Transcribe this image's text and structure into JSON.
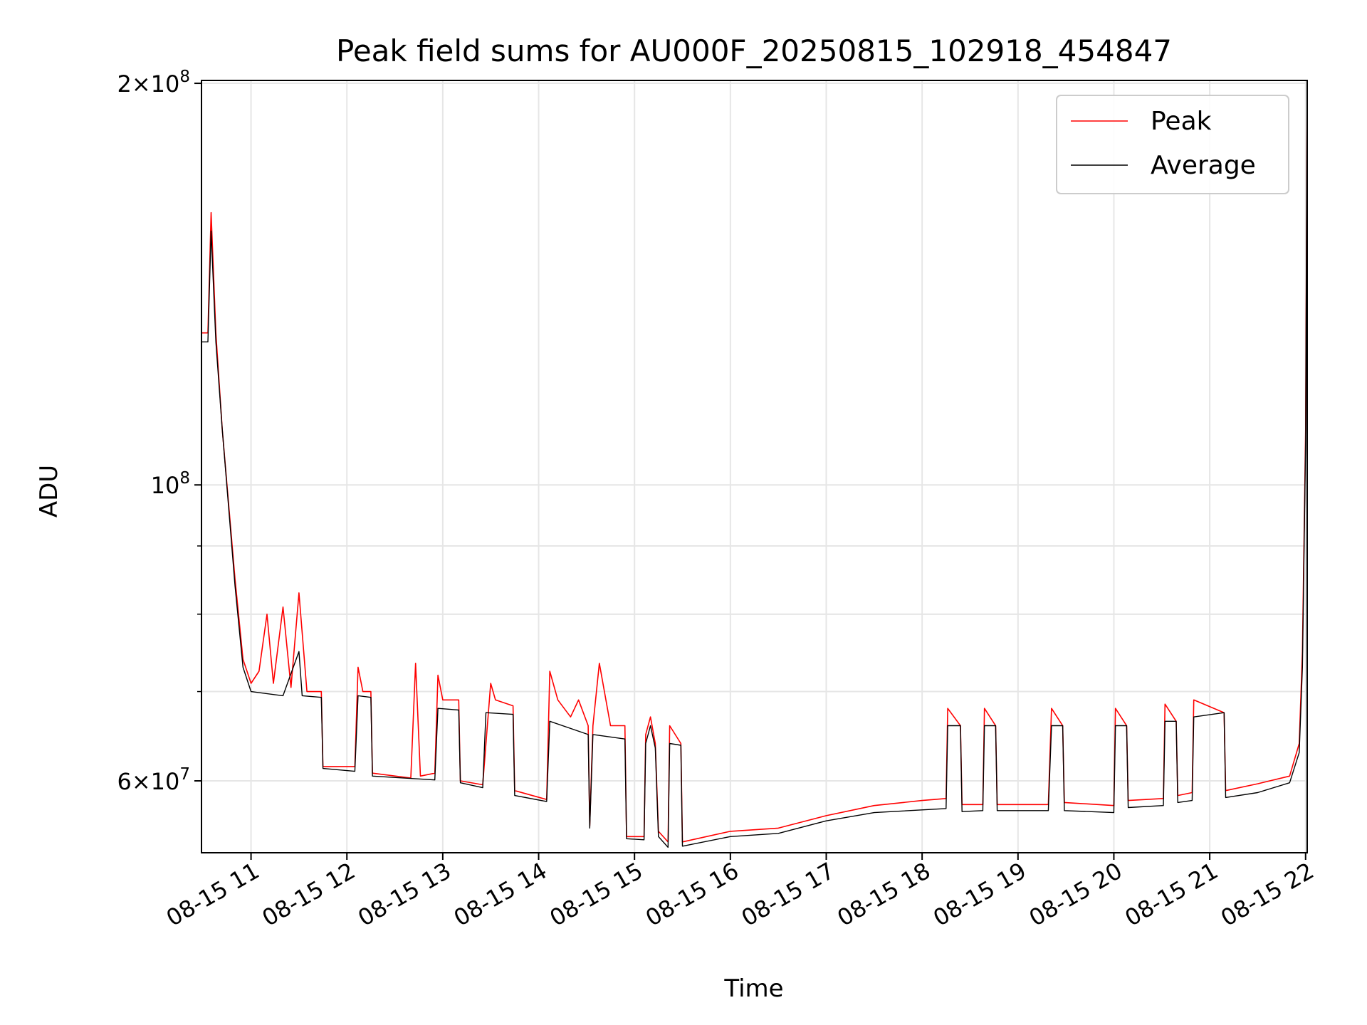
{
  "chart_data": {
    "type": "line",
    "title": "Peak field sums for AU000F_20250815_102918_454847",
    "xlabel": "Time",
    "ylabel": "ADU",
    "x_ticks": [
      "08-15 11",
      "08-15 12",
      "08-15 13",
      "08-15 14",
      "08-15 15",
      "08-15 16",
      "08-15 17",
      "08-15 18",
      "08-15 19",
      "08-15 20",
      "08-15 21",
      "08-15 22"
    ],
    "y_ticks": [
      {
        "value": 60000000,
        "mantissa": "6",
        "exponent": "7"
      },
      {
        "value": 100000000,
        "mantissa": "",
        "exponent": "8"
      },
      {
        "value": 200000000,
        "mantissa": "2",
        "exponent": "8"
      }
    ],
    "xlim": [
      "2025-08-15 10:29",
      "2025-08-15 22:01"
    ],
    "ylim": [
      53000000,
      201000000
    ],
    "y_scale": "log",
    "grid": true,
    "legend_position": "top-right",
    "series": [
      {
        "name": "Peak",
        "color": "#ff0000",
        "points": [
          [
            "2025-08-15 10:29",
            130000000
          ],
          [
            "2025-08-15 10:33",
            130000000
          ],
          [
            "2025-08-15 10:35",
            160000000
          ],
          [
            "2025-08-15 10:38",
            130000000
          ],
          [
            "2025-08-15 10:42",
            110000000
          ],
          [
            "2025-08-15 10:50",
            85000000
          ],
          [
            "2025-08-15 10:55",
            74000000
          ],
          [
            "2025-08-15 11:00",
            71000000
          ],
          [
            "2025-08-15 11:05",
            72500000
          ],
          [
            "2025-08-15 11:10",
            80000000
          ],
          [
            "2025-08-15 11:14",
            71000000
          ],
          [
            "2025-08-15 11:20",
            81000000
          ],
          [
            "2025-08-15 11:25",
            70500000
          ],
          [
            "2025-08-15 11:30",
            83000000
          ],
          [
            "2025-08-15 11:35",
            70000000
          ],
          [
            "2025-08-15 11:40",
            70000000
          ],
          [
            "2025-08-15 11:44",
            70000000
          ],
          [
            "2025-08-15 11:45",
            61500000
          ],
          [
            "2025-08-15 12:05",
            61500000
          ],
          [
            "2025-08-15 12:07",
            73000000
          ],
          [
            "2025-08-15 12:10",
            70000000
          ],
          [
            "2025-08-15 12:15",
            70000000
          ],
          [
            "2025-08-15 12:16",
            60800000
          ],
          [
            "2025-08-15 12:40",
            60300000
          ],
          [
            "2025-08-15 12:43",
            73500000
          ],
          [
            "2025-08-15 12:46",
            60500000
          ],
          [
            "2025-08-15 12:55",
            60800000
          ],
          [
            "2025-08-15 12:57",
            72000000
          ],
          [
            "2025-08-15 13:00",
            69000000
          ],
          [
            "2025-08-15 13:10",
            69000000
          ],
          [
            "2025-08-15 13:11",
            60000000
          ],
          [
            "2025-08-15 13:25",
            59600000
          ],
          [
            "2025-08-15 13:30",
            71000000
          ],
          [
            "2025-08-15 13:33",
            69000000
          ],
          [
            "2025-08-15 13:44",
            68300000
          ],
          [
            "2025-08-15 13:45",
            59000000
          ],
          [
            "2025-08-15 14:05",
            58100000
          ],
          [
            "2025-08-15 14:07",
            72500000
          ],
          [
            "2025-08-15 14:12",
            69000000
          ],
          [
            "2025-08-15 14:20",
            67000000
          ],
          [
            "2025-08-15 14:25",
            69000000
          ],
          [
            "2025-08-15 14:31",
            66000000
          ],
          [
            "2025-08-15 14:32",
            55500000
          ],
          [
            "2025-08-15 14:34",
            66000000
          ],
          [
            "2025-08-15 14:38",
            73500000
          ],
          [
            "2025-08-15 14:45",
            66000000
          ],
          [
            "2025-08-15 14:54",
            66000000
          ],
          [
            "2025-08-15 14:55",
            54500000
          ],
          [
            "2025-08-15 15:06",
            54500000
          ],
          [
            "2025-08-15 15:07",
            65000000
          ],
          [
            "2025-08-15 15:10",
            67000000
          ],
          [
            "2025-08-15 15:13",
            64000000
          ],
          [
            "2025-08-15 15:15",
            55000000
          ],
          [
            "2025-08-15 15:21",
            54000000
          ],
          [
            "2025-08-15 15:22",
            66000000
          ],
          [
            "2025-08-15 15:29",
            64000000
          ],
          [
            "2025-08-15 15:30",
            54000000
          ],
          [
            "2025-08-15 16:00",
            55000000
          ],
          [
            "2025-08-15 16:30",
            55300000
          ],
          [
            "2025-08-15 17:00",
            56500000
          ],
          [
            "2025-08-15 17:30",
            57500000
          ],
          [
            "2025-08-15 18:00",
            58000000
          ],
          [
            "2025-08-15 18:15",
            58200000
          ],
          [
            "2025-08-15 18:16",
            68000000
          ],
          [
            "2025-08-15 18:24",
            66000000
          ],
          [
            "2025-08-15 18:25",
            57600000
          ],
          [
            "2025-08-15 18:38",
            57600000
          ],
          [
            "2025-08-15 18:39",
            68000000
          ],
          [
            "2025-08-15 18:46",
            66000000
          ],
          [
            "2025-08-15 18:47",
            57600000
          ],
          [
            "2025-08-15 19:19",
            57600000
          ],
          [
            "2025-08-15 19:21",
            68000000
          ],
          [
            "2025-08-15 19:28",
            66000000
          ],
          [
            "2025-08-15 19:29",
            57800000
          ],
          [
            "2025-08-15 20:00",
            57500000
          ],
          [
            "2025-08-15 20:01",
            68000000
          ],
          [
            "2025-08-15 20:08",
            66000000
          ],
          [
            "2025-08-15 20:09",
            58000000
          ],
          [
            "2025-08-15 20:31",
            58200000
          ],
          [
            "2025-08-15 20:32",
            68500000
          ],
          [
            "2025-08-15 20:39",
            66500000
          ],
          [
            "2025-08-15 20:40",
            58500000
          ],
          [
            "2025-08-15 20:49",
            58800000
          ],
          [
            "2025-08-15 20:50",
            69000000
          ],
          [
            "2025-08-15 21:09",
            67500000
          ],
          [
            "2025-08-15 21:10",
            59000000
          ],
          [
            "2025-08-15 21:30",
            59700000
          ],
          [
            "2025-08-15 21:50",
            60500000
          ],
          [
            "2025-08-15 21:56",
            64000000
          ],
          [
            "2025-08-15 21:58",
            75000000
          ],
          [
            "2025-08-15 22:00",
            110000000
          ],
          [
            "2025-08-15 22:01",
            201000000
          ]
        ]
      },
      {
        "name": "Average",
        "color": "#000000",
        "points": [
          [
            "2025-08-15 10:29",
            128000000
          ],
          [
            "2025-08-15 10:33",
            128000000
          ],
          [
            "2025-08-15 10:35",
            155000000
          ],
          [
            "2025-08-15 10:38",
            128000000
          ],
          [
            "2025-08-15 10:42",
            110000000
          ],
          [
            "2025-08-15 10:50",
            84000000
          ],
          [
            "2025-08-15 10:55",
            73000000
          ],
          [
            "2025-08-15 11:00",
            70000000
          ],
          [
            "2025-08-15 11:20",
            69500000
          ],
          [
            "2025-08-15 11:30",
            75000000
          ],
          [
            "2025-08-15 11:32",
            69500000
          ],
          [
            "2025-08-15 11:44",
            69300000
          ],
          [
            "2025-08-15 11:45",
            61300000
          ],
          [
            "2025-08-15 12:05",
            61000000
          ],
          [
            "2025-08-15 12:07",
            69500000
          ],
          [
            "2025-08-15 12:15",
            69300000
          ],
          [
            "2025-08-15 12:16",
            60500000
          ],
          [
            "2025-08-15 12:55",
            60100000
          ],
          [
            "2025-08-15 12:57",
            68000000
          ],
          [
            "2025-08-15 13:10",
            67800000
          ],
          [
            "2025-08-15 13:11",
            59800000
          ],
          [
            "2025-08-15 13:25",
            59300000
          ],
          [
            "2025-08-15 13:27",
            67500000
          ],
          [
            "2025-08-15 13:44",
            67300000
          ],
          [
            "2025-08-15 13:45",
            58500000
          ],
          [
            "2025-08-15 14:05",
            57900000
          ],
          [
            "2025-08-15 14:07",
            66500000
          ],
          [
            "2025-08-15 14:31",
            65000000
          ],
          [
            "2025-08-15 14:32",
            55300000
          ],
          [
            "2025-08-15 14:34",
            65000000
          ],
          [
            "2025-08-15 14:54",
            64500000
          ],
          [
            "2025-08-15 14:55",
            54300000
          ],
          [
            "2025-08-15 15:06",
            54200000
          ],
          [
            "2025-08-15 15:07",
            64000000
          ],
          [
            "2025-08-15 15:10",
            66000000
          ],
          [
            "2025-08-15 15:13",
            63500000
          ],
          [
            "2025-08-15 15:15",
            54500000
          ],
          [
            "2025-08-15 15:21",
            53500000
          ],
          [
            "2025-08-15 15:22",
            64000000
          ],
          [
            "2025-08-15 15:29",
            63800000
          ],
          [
            "2025-08-15 15:30",
            53600000
          ],
          [
            "2025-08-15 16:00",
            54500000
          ],
          [
            "2025-08-15 16:30",
            54800000
          ],
          [
            "2025-08-15 17:00",
            56000000
          ],
          [
            "2025-08-15 17:30",
            56800000
          ],
          [
            "2025-08-15 18:15",
            57200000
          ],
          [
            "2025-08-15 18:16",
            66000000
          ],
          [
            "2025-08-15 18:24",
            66000000
          ],
          [
            "2025-08-15 18:25",
            56900000
          ],
          [
            "2025-08-15 18:38",
            57000000
          ],
          [
            "2025-08-15 18:39",
            66000000
          ],
          [
            "2025-08-15 18:46",
            66000000
          ],
          [
            "2025-08-15 18:47",
            57000000
          ],
          [
            "2025-08-15 19:19",
            57000000
          ],
          [
            "2025-08-15 19:21",
            66000000
          ],
          [
            "2025-08-15 19:28",
            66000000
          ],
          [
            "2025-08-15 19:29",
            57000000
          ],
          [
            "2025-08-15 20:00",
            56800000
          ],
          [
            "2025-08-15 20:01",
            66000000
          ],
          [
            "2025-08-15 20:08",
            66000000
          ],
          [
            "2025-08-15 20:09",
            57300000
          ],
          [
            "2025-08-15 20:31",
            57500000
          ],
          [
            "2025-08-15 20:32",
            66500000
          ],
          [
            "2025-08-15 20:39",
            66500000
          ],
          [
            "2025-08-15 20:40",
            57800000
          ],
          [
            "2025-08-15 20:49",
            58000000
          ],
          [
            "2025-08-15 20:50",
            67000000
          ],
          [
            "2025-08-15 21:09",
            67500000
          ],
          [
            "2025-08-15 21:10",
            58300000
          ],
          [
            "2025-08-15 21:30",
            58800000
          ],
          [
            "2025-08-15 21:50",
            59800000
          ],
          [
            "2025-08-15 21:56",
            63000000
          ],
          [
            "2025-08-15 21:58",
            73000000
          ],
          [
            "2025-08-15 22:00",
            108000000
          ],
          [
            "2025-08-15 22:01",
            201000000
          ]
        ]
      }
    ]
  }
}
